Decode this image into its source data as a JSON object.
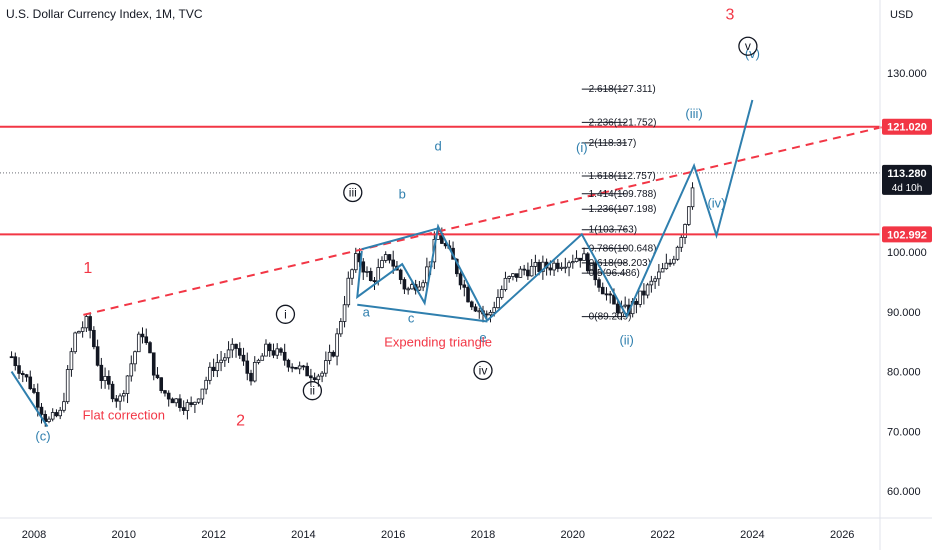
{
  "header": {
    "title": "U.S. Dollar Currency Index, 1M, TVC"
  },
  "chart_data": {
    "type": "candlestick",
    "title": "U.S. Dollar Currency Index, 1M, TVC",
    "currency": "USD",
    "x_ticks": [
      "2008",
      "2010",
      "2012",
      "2014",
      "2016",
      "2018",
      "2020",
      "2022",
      "2024",
      "2026"
    ],
    "y_ticks": [
      "60.000",
      "70.000",
      "80.000",
      "90.000",
      "100.000",
      "130.000"
    ],
    "xlim": [
      2007.5,
      2027.2
    ],
    "ylim": [
      55,
      140
    ],
    "price_badges": [
      {
        "value": "121.020",
        "color": "#f23645"
      },
      {
        "value": "113.280",
        "sub": "4d 10h",
        "color": "#131722"
      },
      {
        "value": "102.992",
        "color": "#f23645"
      }
    ],
    "horizontal_lines": [
      {
        "y": 121.02,
        "color": "#f23645"
      },
      {
        "y": 102.992,
        "color": "#f23645"
      }
    ],
    "fib_levels": [
      {
        "label": "2.618(127.311)",
        "y": 127.311
      },
      {
        "label": "2.236(121.752)",
        "y": 121.752
      },
      {
        "label": "2(118.317)",
        "y": 118.317
      },
      {
        "label": "1.618(112.757)",
        "y": 112.757
      },
      {
        "label": "1.414(109.788)",
        "y": 109.788
      },
      {
        "label": "1.236(107.198)",
        "y": 107.198
      },
      {
        "label": "1(103.763)",
        "y": 103.763
      },
      {
        "label": "0.786(100.648)",
        "y": 100.648
      },
      {
        "label": "0.618(98.203)",
        "y": 98.203
      },
      {
        "label": "0.5(96.486)",
        "y": 96.486
      },
      {
        "label": "0(89.209)",
        "y": 89.209
      }
    ],
    "wave_labels": [
      {
        "text": "1",
        "x": 2009.2,
        "y": 96.5,
        "style": "red"
      },
      {
        "text": "2",
        "x": 2012.6,
        "y": 71.0,
        "style": "red"
      },
      {
        "text": "3",
        "x": 2023.5,
        "y": 139.0,
        "style": "red"
      },
      {
        "text": "(c)",
        "x": 2008.2,
        "y": 68.5,
        "style": "blue"
      },
      {
        "text": "a",
        "x": 2015.4,
        "y": 89.2,
        "style": "blue"
      },
      {
        "text": "b",
        "x": 2016.2,
        "y": 109.0,
        "style": "blue"
      },
      {
        "text": "c",
        "x": 2016.4,
        "y": 88.2,
        "style": "blue"
      },
      {
        "text": "d",
        "x": 2017.0,
        "y": 117.0,
        "style": "blue"
      },
      {
        "text": "e",
        "x": 2018.0,
        "y": 85.0,
        "style": "blue"
      },
      {
        "text": "(i)",
        "x": 2020.2,
        "y": 116.8,
        "style": "blue"
      },
      {
        "text": "(ii)",
        "x": 2021.2,
        "y": 84.5,
        "style": "blue"
      },
      {
        "text": "(iii)",
        "x": 2022.7,
        "y": 122.5,
        "style": "blue"
      },
      {
        "text": "(iv)",
        "x": 2023.2,
        "y": 107.5,
        "style": "blue"
      },
      {
        "text": "(v)",
        "x": 2024.0,
        "y": 132.5,
        "style": "blue"
      },
      {
        "text": "i",
        "x": 2013.6,
        "y": 89.6,
        "style": "circle"
      },
      {
        "text": "ii",
        "x": 2014.2,
        "y": 76.8,
        "style": "circle"
      },
      {
        "text": "iii",
        "x": 2015.1,
        "y": 110.0,
        "style": "circle"
      },
      {
        "text": "iv",
        "x": 2018.0,
        "y": 80.2,
        "style": "circle"
      },
      {
        "text": "v",
        "x": 2023.9,
        "y": 134.5,
        "style": "circle"
      }
    ],
    "annotations": [
      {
        "text": "Flat correction",
        "x": 2010.0,
        "y": 72.0
      },
      {
        "text": "Expending triangle",
        "x": 2017.0,
        "y": 84.2
      }
    ],
    "trendline": {
      "from": [
        2009.1,
        89.5
      ],
      "to": [
        2027.2,
        121.5
      ],
      "color": "#f23645",
      "dashed": true
    },
    "wave_path_abcde": [
      [
        2015.3,
        100.2
      ],
      [
        2015.2,
        92.5
      ],
      [
        2016.2,
        98.0
      ],
      [
        2016.7,
        91.5
      ],
      [
        2017.0,
        104.3
      ],
      [
        2018.1,
        88.5
      ]
    ],
    "wave_path_upper": [
      [
        2015.3,
        100.5
      ],
      [
        2017.0,
        104.0
      ]
    ],
    "wave_path_lower": [
      [
        2015.2,
        91.2
      ],
      [
        2018.1,
        88.4
      ]
    ],
    "wave_path_i": [
      [
        2018.1,
        88.6
      ],
      [
        2020.2,
        103.0
      ],
      [
        2021.2,
        89.3
      ],
      [
        2022.7,
        114.5
      ],
      [
        2023.2,
        102.8
      ],
      [
        2024.0,
        125.5
      ]
    ],
    "wave_path_c": [
      [
        2007.5,
        80.0
      ],
      [
        2008.3,
        70.8
      ]
    ]
  }
}
